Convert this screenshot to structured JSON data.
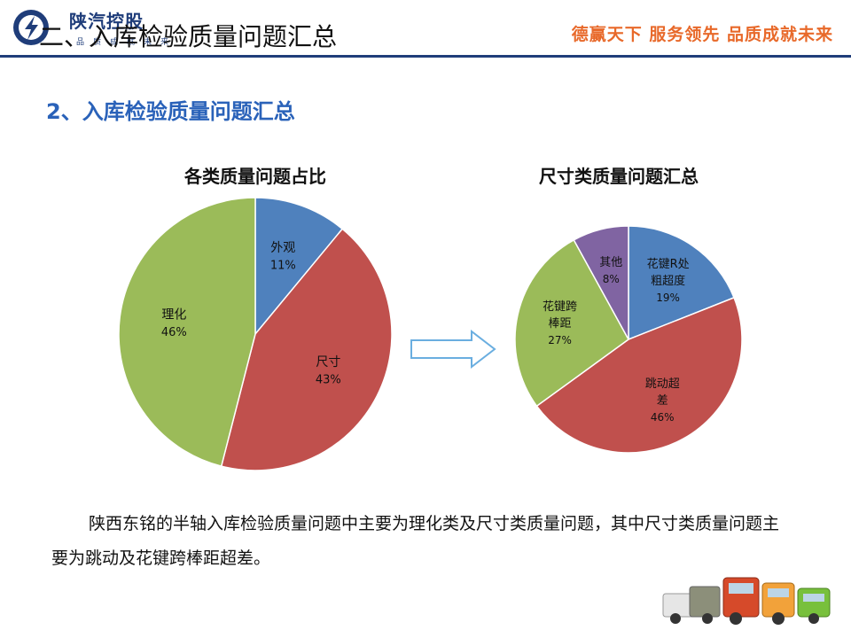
{
  "header": {
    "logo_brand": "陕汽控股",
    "logo_sub": "品质成就未来",
    "title": "二、入库检验质量问题汇总",
    "slogan": "德赢天下  服务领先  品质成就未来"
  },
  "section_title": "2、入库检验质量问题汇总",
  "chart_data": [
    {
      "type": "pie",
      "title": "各类质量问题占比",
      "slices": [
        {
          "label": "外观",
          "value": 11,
          "display": "11%",
          "color": "#4f81bd"
        },
        {
          "label": "尺寸",
          "value": 43,
          "display": "43%",
          "color": "#c0504d"
        },
        {
          "label": "理化",
          "value": 46,
          "display": "46%",
          "color": "#9bbb59"
        }
      ]
    },
    {
      "type": "pie",
      "title": "尺寸类质量问题汇总",
      "slices": [
        {
          "label": "花键R处粗超度",
          "lines": [
            "花键R处",
            "粗超度"
          ],
          "value": 19,
          "display": "19%",
          "color": "#4f81bd"
        },
        {
          "label": "跳动超差",
          "lines": [
            "跳动超",
            "差"
          ],
          "value": 46,
          "display": "46%",
          "color": "#c0504d"
        },
        {
          "label": "花键跨棒距",
          "lines": [
            "花键跨",
            "棒距"
          ],
          "value": 27,
          "display": "27%",
          "color": "#9bbb59"
        },
        {
          "label": "其他",
          "lines": [
            "其他"
          ],
          "value": 8,
          "display": "8%",
          "color": "#8064a2"
        }
      ]
    }
  ],
  "summary_text": "陕西东铭的半轴入库检验质量问题中主要为理化类及尺寸类质量问题，其中尺寸类质量问题主要为跳动及花键跨棒距超差。"
}
